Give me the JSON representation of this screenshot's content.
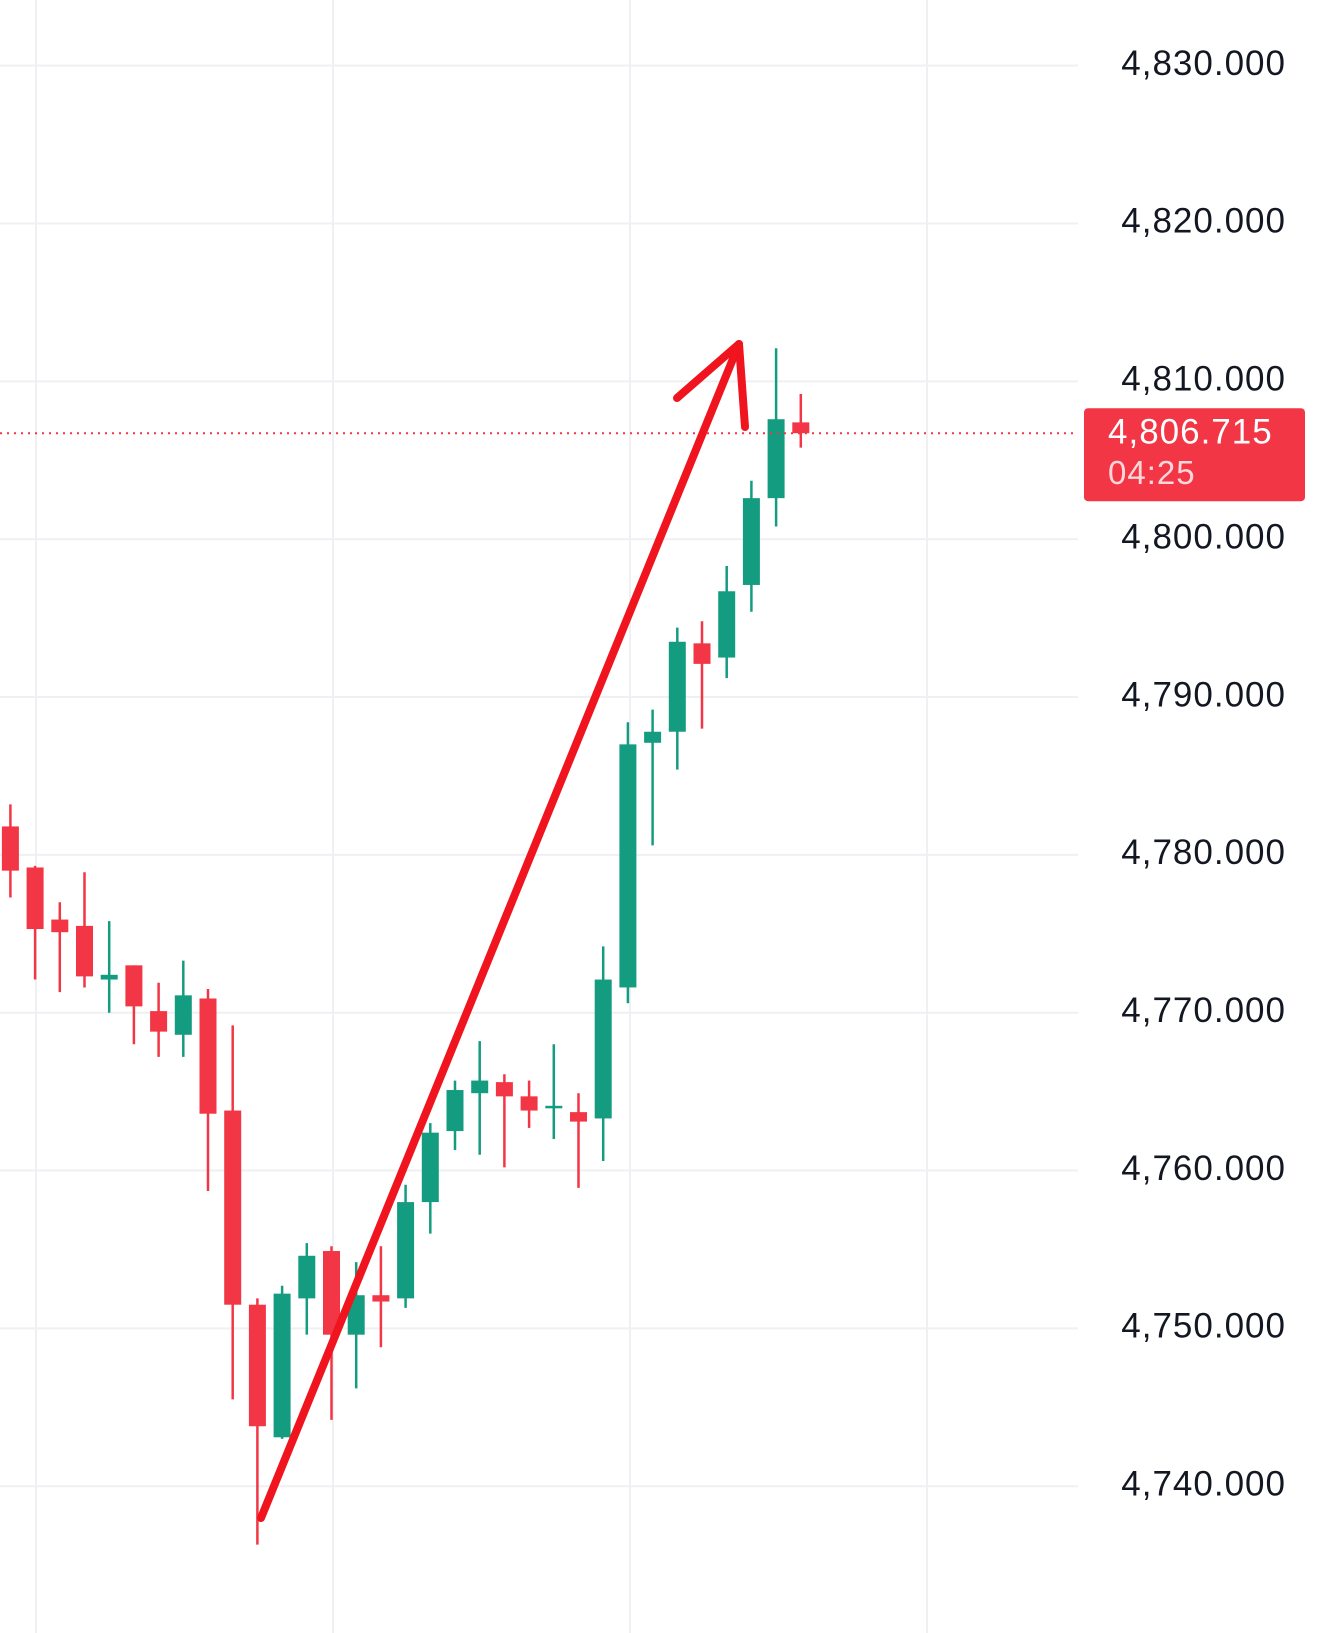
{
  "chart_data": {
    "type": "candlestick",
    "up_color": "#149c80",
    "down_color": "#f23645",
    "ylim": [
      4730.7,
      4834.16
    ],
    "yticks": [
      {
        "value": 4830,
        "label": "4,830.000"
      },
      {
        "value": 4820,
        "label": "4,820.000"
      },
      {
        "value": 4810,
        "label": "4,810.000"
      },
      {
        "value": 4800,
        "label": "4,800.000"
      },
      {
        "value": 4790,
        "label": "4,790.000"
      },
      {
        "value": 4780,
        "label": "4,780.000"
      },
      {
        "value": 4770,
        "label": "4,770.000"
      },
      {
        "value": 4760,
        "label": "4,760.000"
      },
      {
        "value": 4750,
        "label": "4,750.000"
      },
      {
        "value": 4740,
        "label": "4,740.000"
      }
    ],
    "grid": true,
    "open": [
      4781.8,
      4779.2,
      4775.9,
      4775.5,
      4772.1,
      4773.0,
      4770.1,
      4768.6,
      4770.9,
      4763.8,
      4751.5,
      4743.1,
      4751.9,
      4754.9,
      4749.6,
      4752.1,
      4751.9,
      4758.0,
      4762.5,
      4764.9,
      4765.6,
      4764.7,
      4764.0,
      4763.7,
      4763.3,
      4771.6,
      4787.1,
      4787.8,
      4793.4,
      4792.5,
      4797.1,
      4802.6,
      4807.4
    ],
    "high": [
      4783.2,
      4779.3,
      4777.0,
      4778.9,
      4775.8,
      4773.0,
      4771.9,
      4773.3,
      4771.5,
      4769.2,
      4751.9,
      4752.7,
      4755.4,
      4755.2,
      4754.2,
      4755.2,
      4759.1,
      4763.0,
      4765.7,
      4768.2,
      4766.1,
      4765.7,
      4768.0,
      4764.9,
      4774.2,
      4788.4,
      4789.2,
      4794.4,
      4794.8,
      4798.3,
      4803.7,
      4812.1,
      4809.2
    ],
    "low": [
      4777.3,
      4772.1,
      4771.3,
      4771.6,
      4770.0,
      4768.0,
      4767.2,
      4767.2,
      4758.7,
      4745.5,
      4736.3,
      4743.0,
      4749.6,
      4744.2,
      4746.2,
      4748.8,
      4751.3,
      4756.0,
      4761.3,
      4761.0,
      4760.2,
      4762.7,
      4762.0,
      4758.9,
      4760.6,
      4770.6,
      4780.6,
      4785.4,
      4788.0,
      4791.2,
      4795.4,
      4800.8,
      4805.8
    ],
    "close": [
      4779.0,
      4775.3,
      4775.1,
      4772.3,
      4772.4,
      4770.4,
      4768.8,
      4771.1,
      4763.6,
      4751.5,
      4743.8,
      4752.2,
      4754.6,
      4749.6,
      4752.1,
      4751.7,
      4758.0,
      4762.4,
      4765.1,
      4765.7,
      4764.7,
      4763.8,
      4764.1,
      4763.1,
      4772.1,
      4787.0,
      4787.8,
      4793.5,
      4792.1,
      4796.7,
      4802.6,
      4807.6,
      4806.715
    ],
    "last_price": {
      "value": 4806.715,
      "label": "4,806.715",
      "countdown": "04:25",
      "color": "#f23645"
    }
  }
}
